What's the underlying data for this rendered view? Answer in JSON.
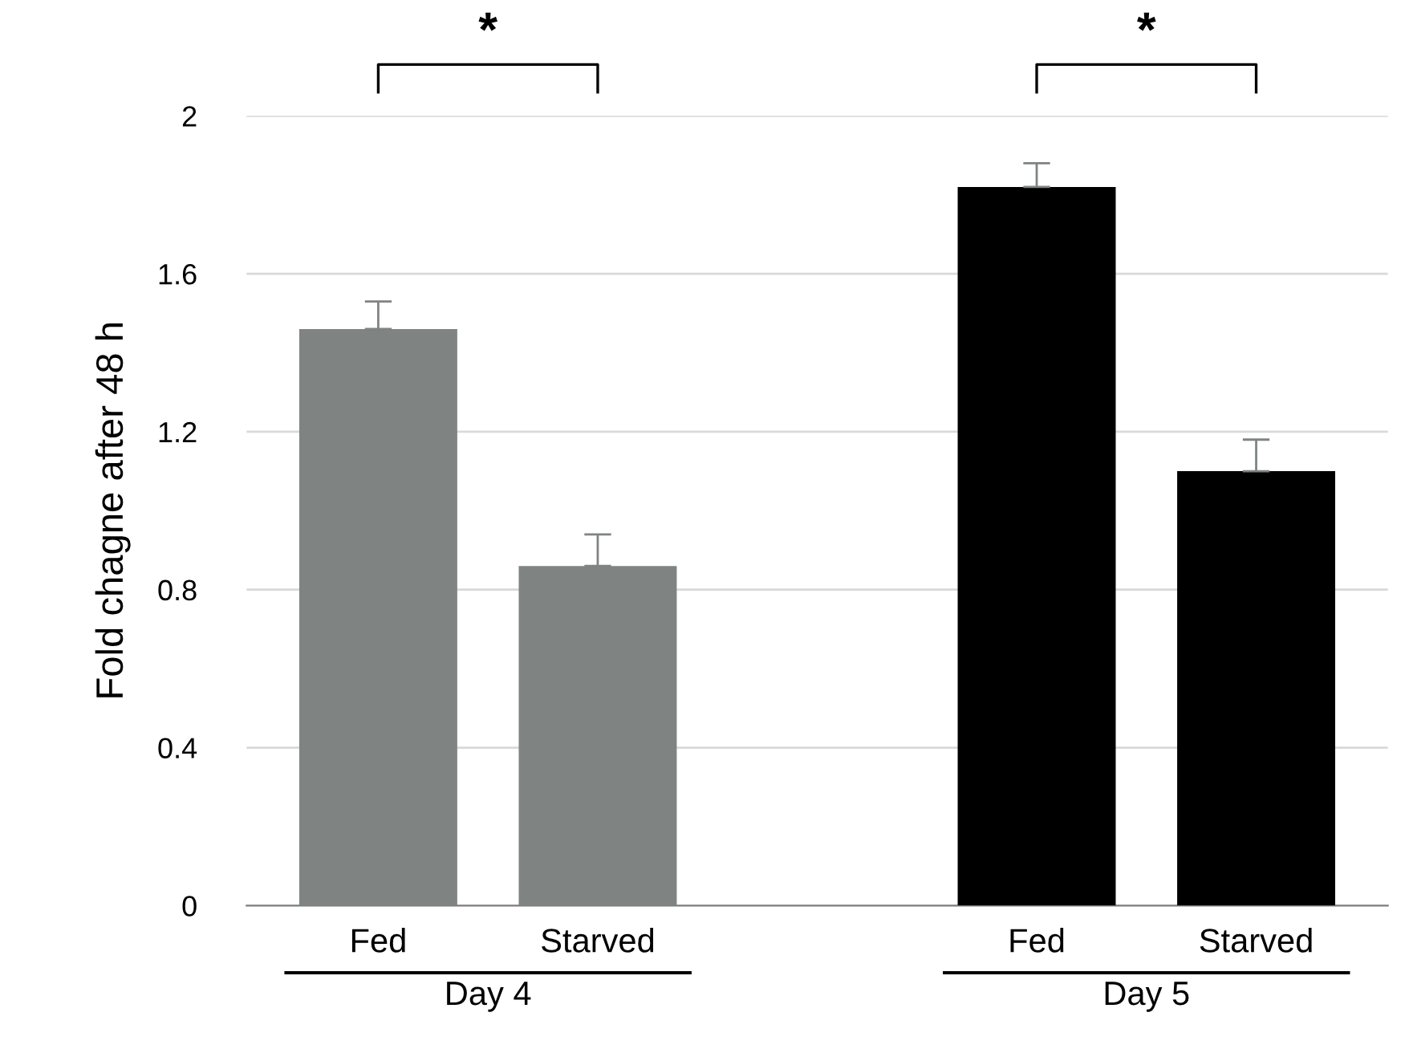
{
  "chart_data": {
    "type": "bar",
    "ylabel": "Fold chagne after 48 h",
    "categories": [
      "Fed",
      "Starved",
      null,
      "Fed",
      "Starved"
    ],
    "values": [
      1.46,
      0.86,
      null,
      1.82,
      1.1
    ],
    "colors": [
      "#7f8382",
      "#7f8382",
      null,
      "#000000",
      "#000000"
    ],
    "errors": [
      [
        1.46,
        1.53
      ],
      [
        0.86,
        0.94
      ],
      null,
      [
        1.82,
        1.88
      ],
      [
        1.1,
        1.18
      ]
    ],
    "ylim": [
      0,
      2
    ],
    "yticks": [
      0,
      0.4,
      0.8,
      1.2,
      1.6,
      2
    ],
    "grid": "y",
    "annotations": [
      "*",
      "*",
      "Day 4",
      "Day 5"
    ]
  }
}
